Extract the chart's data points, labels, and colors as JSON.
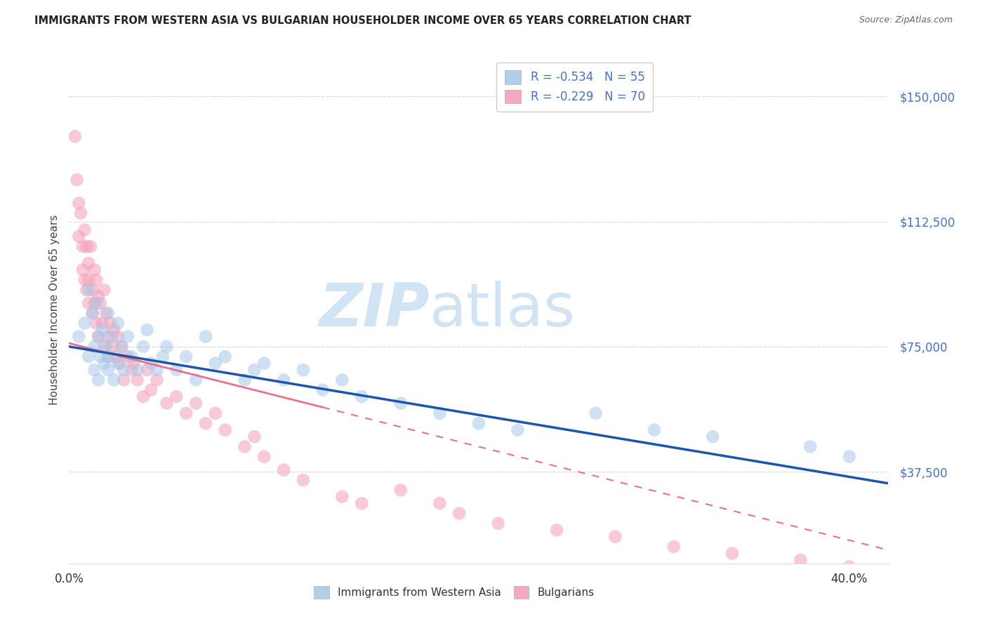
{
  "title": "IMMIGRANTS FROM WESTERN ASIA VS BULGARIAN HOUSEHOLDER INCOME OVER 65 YEARS CORRELATION CHART",
  "source": "Source: ZipAtlas.com",
  "ylabel": "Householder Income Over 65 years",
  "ytick_labels": [
    "$37,500",
    "$75,000",
    "$112,500",
    "$150,000"
  ],
  "ytick_values": [
    37500,
    75000,
    112500,
    150000
  ],
  "ymin": 10000,
  "ymax": 162000,
  "xmin": 0.0,
  "xmax": 0.42,
  "legend_entry_wa": "R = -0.534   N = 55",
  "legend_entry_bg": "R = -0.229   N = 70",
  "western_asia_color": "#a8c8e8",
  "bulgarians_color": "#f4a0b8",
  "western_asia_line_color": "#1a56b0",
  "bulgarians_line_color": "#e87090",
  "watermark_zip": "ZIP",
  "watermark_atlas": "atlas",
  "watermark_color": "#d0e4f4",
  "grid_color": "#cccccc",
  "background_color": "#ffffff",
  "western_asia_x": [
    0.005,
    0.008,
    0.01,
    0.01,
    0.012,
    0.013,
    0.013,
    0.014,
    0.015,
    0.015,
    0.016,
    0.017,
    0.018,
    0.019,
    0.02,
    0.02,
    0.02,
    0.022,
    0.023,
    0.025,
    0.025,
    0.027,
    0.028,
    0.03,
    0.032,
    0.035,
    0.038,
    0.04,
    0.042,
    0.045,
    0.048,
    0.05,
    0.055,
    0.06,
    0.065,
    0.07,
    0.075,
    0.08,
    0.09,
    0.095,
    0.1,
    0.11,
    0.12,
    0.13,
    0.14,
    0.15,
    0.17,
    0.19,
    0.21,
    0.23,
    0.27,
    0.3,
    0.33,
    0.38,
    0.4
  ],
  "western_asia_y": [
    78000,
    82000,
    92000,
    72000,
    85000,
    75000,
    68000,
    88000,
    78000,
    65000,
    72000,
    80000,
    70000,
    75000,
    85000,
    68000,
    72000,
    78000,
    65000,
    82000,
    70000,
    75000,
    68000,
    78000,
    72000,
    68000,
    75000,
    80000,
    70000,
    68000,
    72000,
    75000,
    68000,
    72000,
    65000,
    78000,
    70000,
    72000,
    65000,
    68000,
    70000,
    65000,
    68000,
    62000,
    65000,
    60000,
    58000,
    55000,
    52000,
    50000,
    55000,
    50000,
    48000,
    45000,
    42000
  ],
  "bulgarians_x": [
    0.003,
    0.004,
    0.005,
    0.005,
    0.006,
    0.007,
    0.007,
    0.008,
    0.008,
    0.009,
    0.009,
    0.01,
    0.01,
    0.01,
    0.011,
    0.012,
    0.012,
    0.013,
    0.013,
    0.014,
    0.014,
    0.015,
    0.015,
    0.016,
    0.017,
    0.018,
    0.018,
    0.019,
    0.02,
    0.02,
    0.021,
    0.022,
    0.023,
    0.024,
    0.025,
    0.026,
    0.027,
    0.028,
    0.03,
    0.032,
    0.033,
    0.035,
    0.038,
    0.04,
    0.042,
    0.045,
    0.05,
    0.055,
    0.06,
    0.065,
    0.07,
    0.075,
    0.08,
    0.09,
    0.095,
    0.1,
    0.11,
    0.12,
    0.14,
    0.15,
    0.17,
    0.19,
    0.2,
    0.22,
    0.25,
    0.28,
    0.31,
    0.34,
    0.375,
    0.4
  ],
  "bulgarians_y": [
    138000,
    125000,
    118000,
    108000,
    115000,
    105000,
    98000,
    110000,
    95000,
    105000,
    92000,
    100000,
    88000,
    95000,
    105000,
    92000,
    85000,
    98000,
    88000,
    95000,
    82000,
    90000,
    78000,
    88000,
    82000,
    92000,
    75000,
    85000,
    78000,
    72000,
    82000,
    75000,
    80000,
    72000,
    78000,
    70000,
    75000,
    65000,
    72000,
    68000,
    70000,
    65000,
    60000,
    68000,
    62000,
    65000,
    58000,
    60000,
    55000,
    58000,
    52000,
    55000,
    50000,
    45000,
    48000,
    42000,
    38000,
    35000,
    30000,
    28000,
    32000,
    28000,
    25000,
    22000,
    20000,
    18000,
    15000,
    13000,
    11000,
    9000
  ]
}
